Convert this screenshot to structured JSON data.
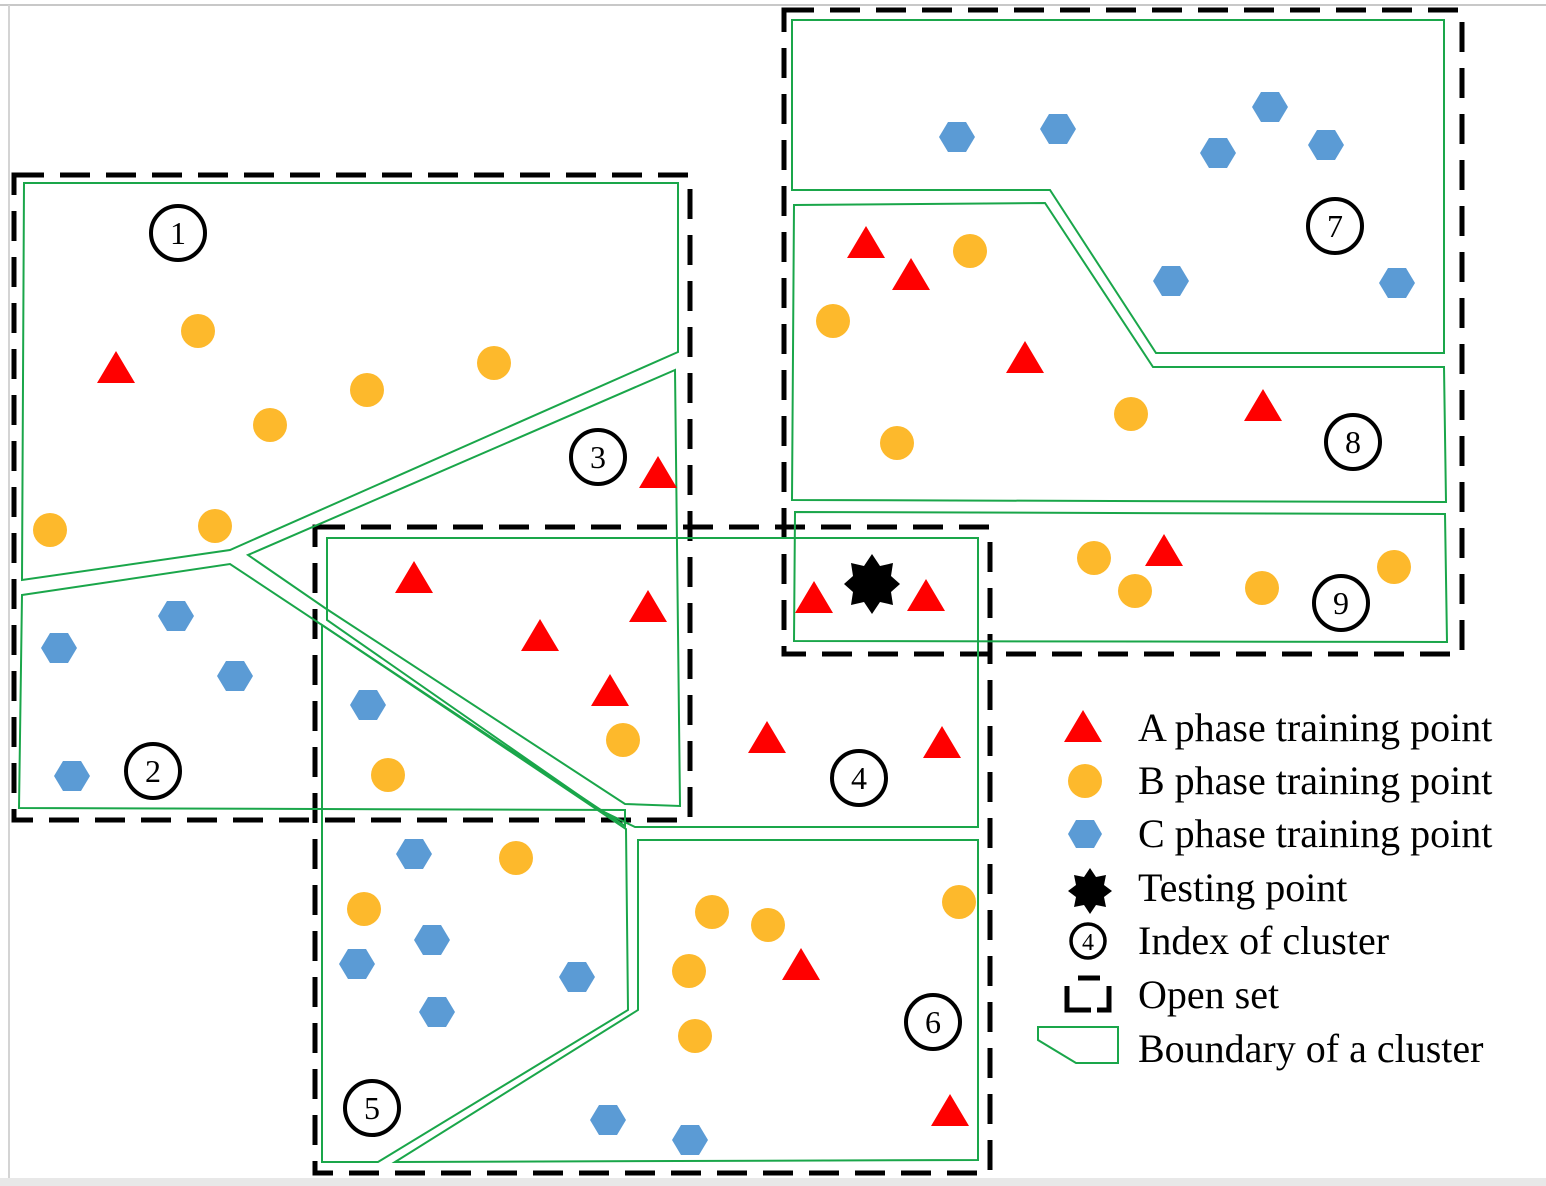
{
  "colors": {
    "phase_a": "#ff0000",
    "phase_b": "#fdb92c",
    "phase_c": "#5b9bd5",
    "boundary": "#1aa64a",
    "open_set": "#000000",
    "testing": "#000000"
  },
  "testing_point": {
    "glyph": "?"
  },
  "clusters": [
    {
      "index": "1"
    },
    {
      "index": "2"
    },
    {
      "index": "3"
    },
    {
      "index": "4"
    },
    {
      "index": "5"
    },
    {
      "index": "6"
    },
    {
      "index": "7"
    },
    {
      "index": "8"
    },
    {
      "index": "9"
    }
  ],
  "legend": {
    "items": [
      {
        "label": "A phase training point",
        "icon": "red-triangle-icon"
      },
      {
        "label": "B phase training point",
        "icon": "orange-circle-icon"
      },
      {
        "label": "C phase training point",
        "icon": "blue-hexagon-icon"
      },
      {
        "label": "Testing point",
        "icon": "testing-star-icon"
      },
      {
        "label": "Index of cluster",
        "icon": "cluster-index-icon",
        "sample": "4"
      },
      {
        "label": "Open set",
        "icon": "open-set-icon"
      },
      {
        "label": "Boundary of a cluster",
        "icon": "boundary-icon"
      }
    ]
  }
}
